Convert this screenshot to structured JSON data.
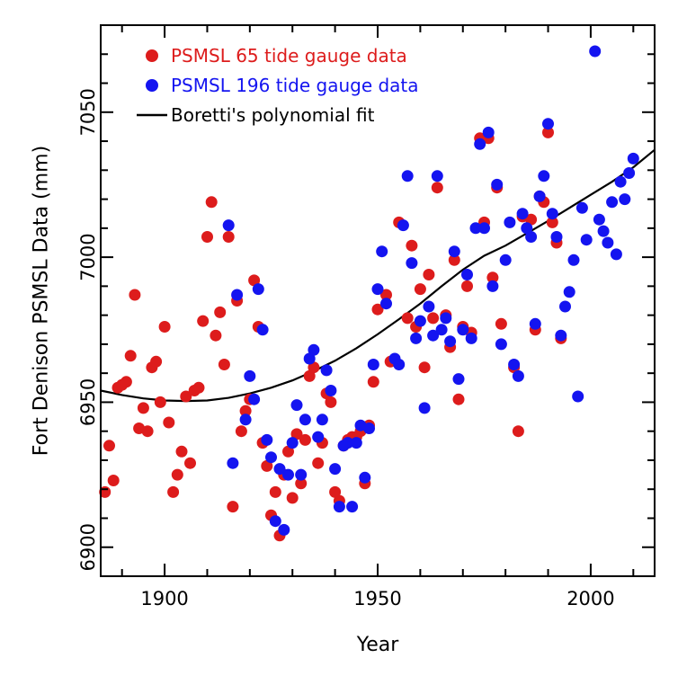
{
  "chart_data": {
    "type": "scatter",
    "xlabel": "Year",
    "ylabel": "Fort Denison PSMSL Data (mm)",
    "xlim": [
      1885,
      2015
    ],
    "ylim": [
      6890,
      7080
    ],
    "x_ticks": [
      1900,
      1950,
      2000
    ],
    "x_tick_labels": [
      "1900",
      "1950",
      "2000"
    ],
    "y_ticks": [
      6900,
      6950,
      7000,
      7050
    ],
    "y_tick_labels": [
      "6900",
      "6950",
      "7000",
      "7050"
    ],
    "grid": false,
    "legend_position": "top-left",
    "series": [
      {
        "name": "PSMSL 65 tide gauge data",
        "color": "#dd1c1c",
        "marker": "circle",
        "points": [
          [
            1886,
            6919
          ],
          [
            1887,
            6935
          ],
          [
            1888,
            6923
          ],
          [
            1889,
            6955
          ],
          [
            1890,
            6956
          ],
          [
            1891,
            6957
          ],
          [
            1892,
            6966
          ],
          [
            1893,
            6987
          ],
          [
            1894,
            6941
          ],
          [
            1895,
            6948
          ],
          [
            1896,
            6940
          ],
          [
            1897,
            6962
          ],
          [
            1898,
            6964
          ],
          [
            1899,
            6950
          ],
          [
            1900,
            6976
          ],
          [
            1901,
            6943
          ],
          [
            1902,
            6919
          ],
          [
            1903,
            6925
          ],
          [
            1904,
            6933
          ],
          [
            1905,
            6952
          ],
          [
            1906,
            6929
          ],
          [
            1907,
            6954
          ],
          [
            1908,
            6955
          ],
          [
            1909,
            6978
          ],
          [
            1910,
            7007
          ],
          [
            1911,
            7019
          ],
          [
            1912,
            6973
          ],
          [
            1913,
            6981
          ],
          [
            1914,
            6963
          ],
          [
            1915,
            7007
          ],
          [
            1916,
            6914
          ],
          [
            1917,
            6985
          ],
          [
            1918,
            6940
          ],
          [
            1919,
            6947
          ],
          [
            1920,
            6951
          ],
          [
            1921,
            6992
          ],
          [
            1922,
            6976
          ],
          [
            1923,
            6936
          ],
          [
            1924,
            6928
          ],
          [
            1925,
            6911
          ],
          [
            1926,
            6919
          ],
          [
            1927,
            6904
          ],
          [
            1928,
            6925
          ],
          [
            1929,
            6933
          ],
          [
            1930,
            6917
          ],
          [
            1931,
            6939
          ],
          [
            1932,
            6922
          ],
          [
            1933,
            6937
          ],
          [
            1934,
            6959
          ],
          [
            1935,
            6962
          ],
          [
            1936,
            6929
          ],
          [
            1937,
            6936
          ],
          [
            1938,
            6953
          ],
          [
            1939,
            6950
          ],
          [
            1940,
            6919
          ],
          [
            1941,
            6916
          ],
          [
            1942,
            6935
          ],
          [
            1943,
            6937
          ],
          [
            1944,
            6938
          ],
          [
            1945,
            6938
          ],
          [
            1946,
            6940
          ],
          [
            1947,
            6922
          ],
          [
            1948,
            6942
          ],
          [
            1949,
            6957
          ],
          [
            1950,
            6982
          ],
          [
            1952,
            6987
          ],
          [
            1953,
            6964
          ],
          [
            1955,
            7012
          ],
          [
            1957,
            6979
          ],
          [
            1958,
            7004
          ],
          [
            1959,
            6976
          ],
          [
            1960,
            6989
          ],
          [
            1961,
            6962
          ],
          [
            1962,
            6994
          ],
          [
            1963,
            6979
          ],
          [
            1964,
            7024
          ],
          [
            1966,
            6980
          ],
          [
            1967,
            6969
          ],
          [
            1968,
            6999
          ],
          [
            1969,
            6951
          ],
          [
            1970,
            6976
          ],
          [
            1971,
            6990
          ],
          [
            1972,
            6974
          ],
          [
            1974,
            7041
          ],
          [
            1975,
            7012
          ],
          [
            1976,
            7041
          ],
          [
            1977,
            6993
          ],
          [
            1978,
            7024
          ],
          [
            1979,
            6977
          ],
          [
            1982,
            6962
          ],
          [
            1983,
            6940
          ],
          [
            1984,
            7014
          ],
          [
            1986,
            7013
          ],
          [
            1987,
            6975
          ],
          [
            1988,
            7021
          ],
          [
            1989,
            7019
          ],
          [
            1990,
            7043
          ],
          [
            1991,
            7012
          ],
          [
            1992,
            7005
          ],
          [
            1993,
            6972
          ]
        ]
      },
      {
        "name": "PSMSL 196 tide gauge data",
        "color": "#1414f0",
        "marker": "circle",
        "points": [
          [
            1915,
            7011
          ],
          [
            1916,
            6929
          ],
          [
            1917,
            6987
          ],
          [
            1919,
            6944
          ],
          [
            1920,
            6959
          ],
          [
            1921,
            6951
          ],
          [
            1922,
            6989
          ],
          [
            1923,
            6975
          ],
          [
            1924,
            6937
          ],
          [
            1925,
            6931
          ],
          [
            1926,
            6909
          ],
          [
            1927,
            6927
          ],
          [
            1928,
            6906
          ],
          [
            1929,
            6925
          ],
          [
            1930,
            6936
          ],
          [
            1931,
            6949
          ],
          [
            1932,
            6925
          ],
          [
            1933,
            6944
          ],
          [
            1934,
            6965
          ],
          [
            1935,
            6968
          ],
          [
            1936,
            6938
          ],
          [
            1937,
            6944
          ],
          [
            1938,
            6961
          ],
          [
            1939,
            6954
          ],
          [
            1940,
            6927
          ],
          [
            1941,
            6914
          ],
          [
            1942,
            6935
          ],
          [
            1943,
            6936
          ],
          [
            1944,
            6914
          ],
          [
            1945,
            6936
          ],
          [
            1946,
            6942
          ],
          [
            1947,
            6924
          ],
          [
            1948,
            6941
          ],
          [
            1949,
            6963
          ],
          [
            1950,
            6989
          ],
          [
            1951,
            7002
          ],
          [
            1952,
            6984
          ],
          [
            1954,
            6965
          ],
          [
            1955,
            6963
          ],
          [
            1956,
            7011
          ],
          [
            1957,
            7028
          ],
          [
            1958,
            6998
          ],
          [
            1959,
            6972
          ],
          [
            1960,
            6978
          ],
          [
            1961,
            6948
          ],
          [
            1962,
            6983
          ],
          [
            1963,
            6973
          ],
          [
            1964,
            7028
          ],
          [
            1965,
            6975
          ],
          [
            1966,
            6979
          ],
          [
            1967,
            6971
          ],
          [
            1968,
            7002
          ],
          [
            1969,
            6958
          ],
          [
            1970,
            6975
          ],
          [
            1971,
            6994
          ],
          [
            1972,
            6972
          ],
          [
            1973,
            7010
          ],
          [
            1974,
            7039
          ],
          [
            1975,
            7010
          ],
          [
            1976,
            7043
          ],
          [
            1977,
            6990
          ],
          [
            1978,
            7025
          ],
          [
            1979,
            6970
          ],
          [
            1980,
            6999
          ],
          [
            1981,
            7012
          ],
          [
            1982,
            6963
          ],
          [
            1983,
            6959
          ],
          [
            1984,
            7015
          ],
          [
            1985,
            7010
          ],
          [
            1986,
            7007
          ],
          [
            1987,
            6977
          ],
          [
            1988,
            7021
          ],
          [
            1989,
            7028
          ],
          [
            1990,
            7046
          ],
          [
            1991,
            7015
          ],
          [
            1992,
            7007
          ],
          [
            1993,
            6973
          ],
          [
            1994,
            6983
          ],
          [
            1995,
            6988
          ],
          [
            1996,
            6999
          ],
          [
            1997,
            6952
          ],
          [
            1998,
            7017
          ],
          [
            1999,
            7006
          ],
          [
            2001,
            7071
          ],
          [
            2002,
            7013
          ],
          [
            2003,
            7009
          ],
          [
            2004,
            7005
          ],
          [
            2005,
            7019
          ],
          [
            2006,
            7001
          ],
          [
            2007,
            7026
          ],
          [
            2008,
            7020
          ],
          [
            2009,
            7029
          ],
          [
            2010,
            7034
          ]
        ]
      },
      {
        "name": "Boretti's polynomial fit",
        "type": "line",
        "color": "#000000",
        "x": [
          1885,
          1890,
          1895,
          1900,
          1905,
          1910,
          1915,
          1920,
          1925,
          1930,
          1935,
          1940,
          1945,
          1950,
          1955,
          1960,
          1965,
          1970,
          1975,
          1980,
          1985,
          1990,
          1995,
          2000,
          2005,
          2010,
          2015
        ],
        "y": [
          6954,
          6952.5,
          6951.3,
          6950.6,
          6950.4,
          6950.6,
          6951.5,
          6953,
          6955,
          6957.5,
          6960.7,
          6964.3,
          6968.6,
          6973.4,
          6978.6,
          6984,
          6990,
          6995.7,
          7000.5,
          7004,
          7008.2,
          7012.5,
          7017,
          7021.5,
          7026,
          7031,
          7037
        ]
      }
    ]
  }
}
